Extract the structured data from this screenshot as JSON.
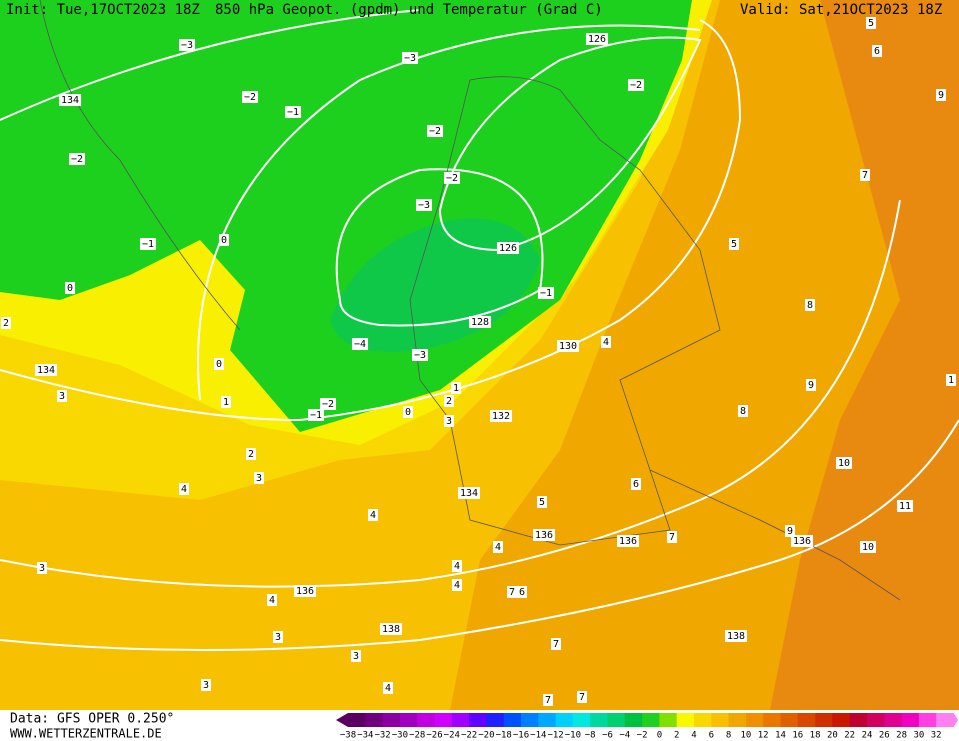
{
  "header": {
    "init": "Init: Tue,17OCT2023 18Z",
    "title": "850 hPa Geopot. (gpdm) und Temperatur (Grad C)",
    "valid": "Valid: Sat,21OCT2023 18Z"
  },
  "footer": {
    "data": "Data: GFS OPER 0.250°",
    "site": "WWW.WETTERZENTRALE.DE"
  },
  "colorbar": {
    "labels": [
      "−38",
      "−34",
      "−32",
      "−30",
      "−28",
      "−26",
      "−24",
      "−22",
      "−20",
      "−18",
      "−16",
      "−14",
      "−12",
      "−10",
      "−8",
      "−6",
      "−4",
      "−2",
      "0",
      "2",
      "4",
      "6",
      "8",
      "10",
      "12",
      "14",
      "16",
      "18",
      "20",
      "22",
      "24",
      "26",
      "28",
      "30",
      "32"
    ]
  },
  "map": {
    "contour_labels": [
      "−3",
      "134",
      "−2",
      "−1",
      "−2",
      "−3",
      "126",
      "−2",
      "−2",
      "−2",
      "−3",
      "126",
      "−1",
      "0",
      "0",
      "−1",
      "128",
      "130",
      "4",
      "−4",
      "−3",
      "0",
      "134",
      "1",
      "2",
      "1",
      "−2",
      "−1",
      "0",
      "3",
      "132",
      "3",
      "2",
      "3",
      "4",
      "134",
      "5",
      "6",
      "4",
      "136",
      "136",
      "7",
      "136",
      "10",
      "10",
      "11",
      "8",
      "9",
      "8",
      "5",
      "7",
      "9",
      "6",
      "5",
      "1",
      "2",
      "3",
      "4",
      "136",
      "4",
      "4",
      "4",
      "7",
      "6",
      "138",
      "3",
      "3",
      "3",
      "4",
      "7",
      "138",
      "7",
      "7",
      "9"
    ]
  }
}
